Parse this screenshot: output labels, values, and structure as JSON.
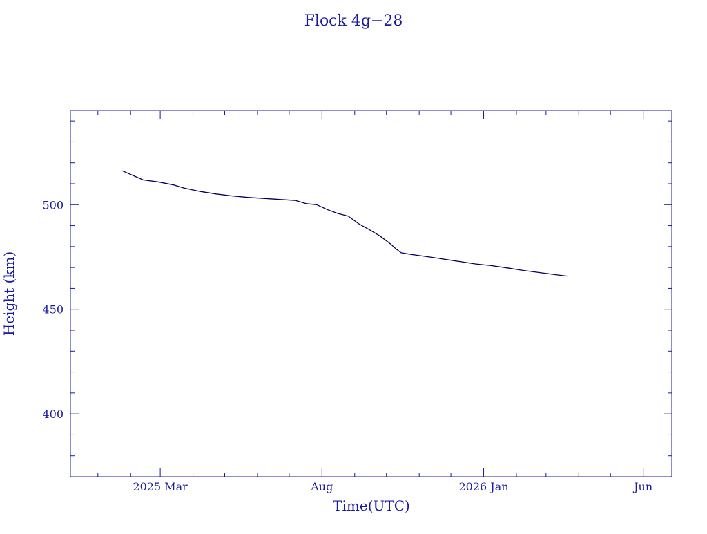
{
  "chart_data": {
    "type": "line",
    "title": "Flock 4g−28",
    "xlabel": "Time(UTC)",
    "ylabel": "Height (km)",
    "colors": {
      "axis": "#1a1aa0",
      "line": "#00005a",
      "text": "#1a1aa0"
    },
    "grid": false,
    "legend": "none",
    "ylim": [
      370,
      545
    ],
    "xlim": [
      "2024-12-06",
      "2026-06-28"
    ],
    "yticks": [
      {
        "value": 400,
        "label": "400"
      },
      {
        "value": 450,
        "label": "450"
      },
      {
        "value": 500,
        "label": "500"
      }
    ],
    "xticks": [
      {
        "value": "2025-03-01",
        "label": "2025 Mar"
      },
      {
        "value": "2025-08-01",
        "label": "Aug"
      },
      {
        "value": "2026-01-01",
        "label": "2026 Jan"
      },
      {
        "value": "2026-06-01",
        "label": "Jun"
      }
    ],
    "series": [
      {
        "x": [
          "2025-01-24",
          "2025-02-13",
          "2025-02-27",
          "2025-03-14",
          "2025-03-24",
          "2025-04-08",
          "2025-04-23",
          "2025-05-08",
          "2025-05-23",
          "2025-06-07",
          "2025-06-22",
          "2025-07-07",
          "2025-07-17",
          "2025-07-27",
          "2025-08-06",
          "2025-08-16",
          "2025-08-26",
          "2025-09-05",
          "2025-09-15",
          "2025-09-25",
          "2025-10-05",
          "2025-10-10",
          "2025-10-15",
          "2025-10-20",
          "2025-10-25",
          "2025-11-04",
          "2025-11-14",
          "2025-11-29",
          "2025-12-14",
          "2025-12-24",
          "2026-01-08",
          "2026-01-23",
          "2026-02-07",
          "2026-02-22",
          "2026-03-09",
          "2026-03-21"
        ],
        "y": [
          516.2,
          511.8,
          510.9,
          509.4,
          507.9,
          506.3,
          505.1,
          504.2,
          503.5,
          503.0,
          502.5,
          502.0,
          500.5,
          500.0,
          497.7,
          495.8,
          494.5,
          490.8,
          488.0,
          485.0,
          481.2,
          478.9,
          477.0,
          476.6,
          476.2,
          475.5,
          474.8,
          473.6,
          472.5,
          471.7,
          470.9,
          469.8,
          468.6,
          467.6,
          466.6,
          465.9
        ]
      }
    ]
  }
}
